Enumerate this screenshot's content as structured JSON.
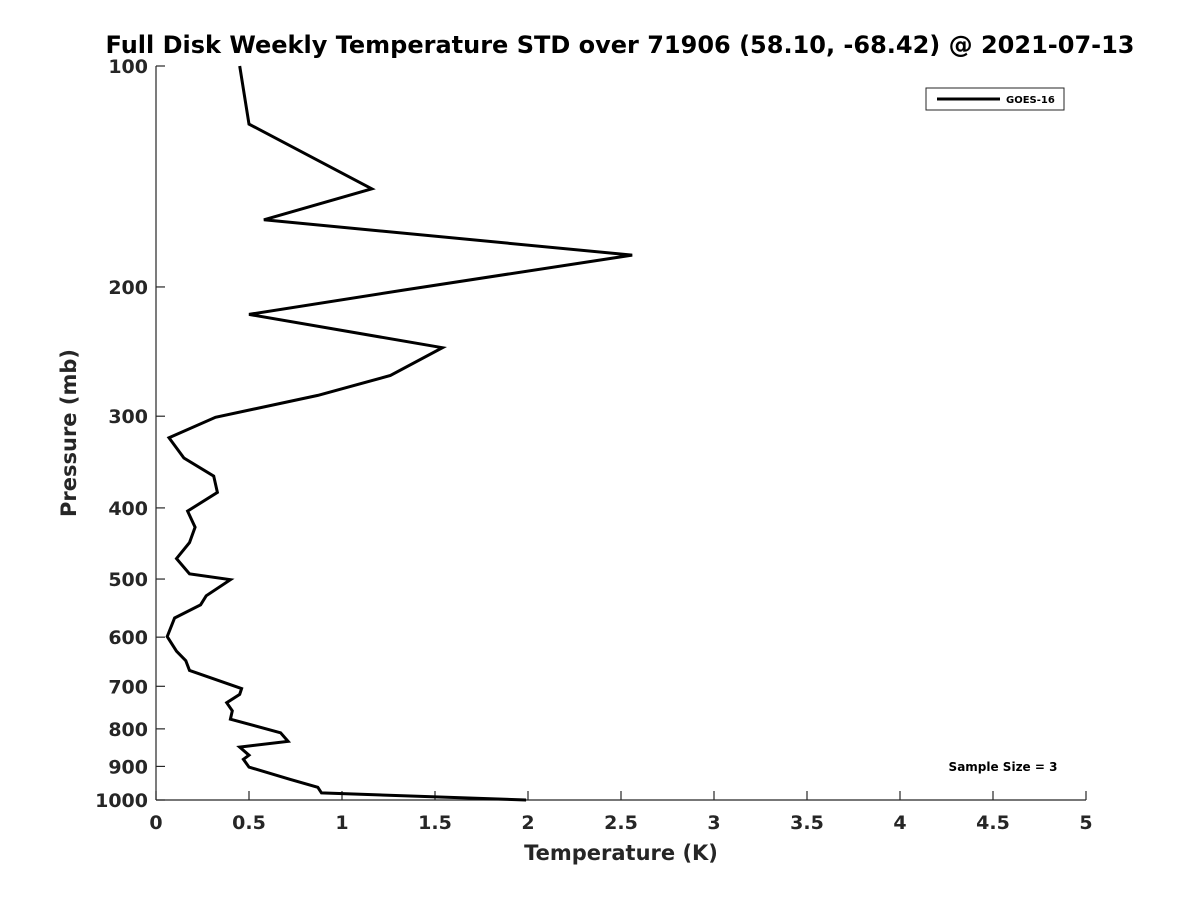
{
  "chart_data": {
    "type": "line",
    "title": "Full Disk Weekly Temperature STD over 71906 (58.10, -68.42) @ 2021-07-13",
    "xlabel": "Temperature (K)",
    "ylabel": "Pressure (mb)",
    "xlim": [
      0,
      5
    ],
    "ylim": [
      100,
      1000
    ],
    "yscale": "log",
    "yreversed": true,
    "grid": false,
    "x_ticks": [
      "0",
      "0.5",
      "1",
      "1.5",
      "2",
      "2.5",
      "3",
      "3.5",
      "4",
      "4.5",
      "5"
    ],
    "y_ticks": [
      "100",
      "200",
      "300",
      "400",
      "500",
      "600",
      "700",
      "800",
      "900",
      "1000"
    ],
    "legend_position": "top-right",
    "annotation": "Sample Size = 3",
    "series": [
      {
        "name": "GOES-16",
        "color": "#000000",
        "points": [
          [
            0.45,
            100
          ],
          [
            0.5,
            120
          ],
          [
            1.16,
            147
          ],
          [
            0.58,
            162
          ],
          [
            2.56,
            181
          ],
          [
            1.33,
            202
          ],
          [
            0.5,
            218
          ],
          [
            1.54,
            242
          ],
          [
            1.26,
            264
          ],
          [
            0.87,
            281
          ],
          [
            0.32,
            301
          ],
          [
            0.07,
            321
          ],
          [
            0.15,
            342
          ],
          [
            0.31,
            362
          ],
          [
            0.33,
            381
          ],
          [
            0.17,
            404
          ],
          [
            0.21,
            425
          ],
          [
            0.18,
            446
          ],
          [
            0.11,
            469
          ],
          [
            0.18,
            492
          ],
          [
            0.4,
            501
          ],
          [
            0.27,
            527
          ],
          [
            0.24,
            542
          ],
          [
            0.1,
            565
          ],
          [
            0.06,
            599
          ],
          [
            0.11,
            627
          ],
          [
            0.16,
            646
          ],
          [
            0.18,
            666
          ],
          [
            0.46,
            705
          ],
          [
            0.45,
            718
          ],
          [
            0.38,
            737
          ],
          [
            0.41,
            756
          ],
          [
            0.4,
            776
          ],
          [
            0.67,
            810
          ],
          [
            0.71,
            832
          ],
          [
            0.45,
            847
          ],
          [
            0.5,
            869
          ],
          [
            0.47,
            880
          ],
          [
            0.5,
            902
          ],
          [
            0.72,
            937
          ],
          [
            0.87,
            961
          ],
          [
            0.89,
            978
          ],
          [
            1.99,
            1000
          ]
        ]
      }
    ]
  }
}
